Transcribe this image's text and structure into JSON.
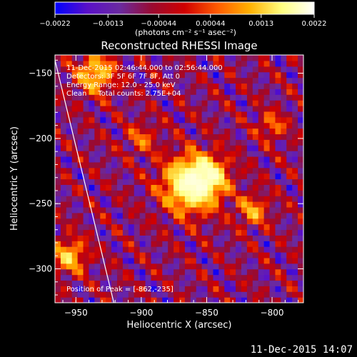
{
  "chart_data": {
    "type": "heatmap",
    "title": "Reconstructed RHESSI Image",
    "xlabel": "Heliocentric X (arcsec)",
    "ylabel": "Heliocentric Y (arcsec)",
    "xlim": [
      -966,
      -776
    ],
    "ylim": [
      -326,
      -136
    ],
    "xticks": [
      -950,
      -900,
      -850,
      -800
    ],
    "xtick_labels": [
      "−950",
      "−900",
      "−850",
      "−800"
    ],
    "yticks": [
      -150,
      -200,
      -250,
      -300
    ],
    "ytick_labels": [
      "−150",
      "−200",
      "−250",
      "−300"
    ],
    "colorbar": {
      "min": -0.0022,
      "max": 0.0022,
      "ticks": [
        -0.0022,
        -0.0013,
        -0.00044,
        0.00044,
        0.0013,
        0.0022
      ],
      "tick_labels": [
        "−0.0022",
        "−0.0013",
        "−0.00044",
        "0.00044",
        "0.0013",
        "0.0022"
      ],
      "unit_label": "(photons cm⁻² s⁻¹ asec⁻²)",
      "colormap": [
        "#0000ff",
        "#5a10c8",
        "#6a2aa0",
        "#9a0a30",
        "#d00000",
        "#ff5a00",
        "#ffb000",
        "#ffff80",
        "#ffffff"
      ]
    },
    "annotations": [
      "11-Dec-2015 02:46:44.000 to 02:56:44.000",
      "Detectors: 3F 5F 6F 7F 8F, Att 0",
      "Energy Range: 12.0 - 25.0 keV",
      "Clean     Total counts: 2.75E+04"
    ],
    "peak_text": "Position of Peak = [-862,-235]",
    "peak": [
      -862,
      -235
    ],
    "sources": [
      {
        "x": -862,
        "y": -235,
        "amp": 1.0,
        "r": 14
      },
      {
        "x": -848,
        "y": -228,
        "amp": 0.55,
        "r": 10
      },
      {
        "x": -935,
        "y": -150,
        "amp": 0.6,
        "r": 10
      },
      {
        "x": -955,
        "y": -290,
        "amp": 0.55,
        "r": 9
      },
      {
        "x": -815,
        "y": -255,
        "amp": 0.45,
        "r": 8
      },
      {
        "x": -900,
        "y": -200,
        "amp": 0.3,
        "r": 8
      },
      {
        "x": -800,
        "y": -190,
        "amp": 0.35,
        "r": 7
      }
    ],
    "limb_line": {
      "x_top": -966,
      "y_top": -140,
      "x_bottom": -921,
      "y_bottom": -326
    }
  },
  "footer": {
    "timestamp": "11-Dec-2015 14:07"
  }
}
